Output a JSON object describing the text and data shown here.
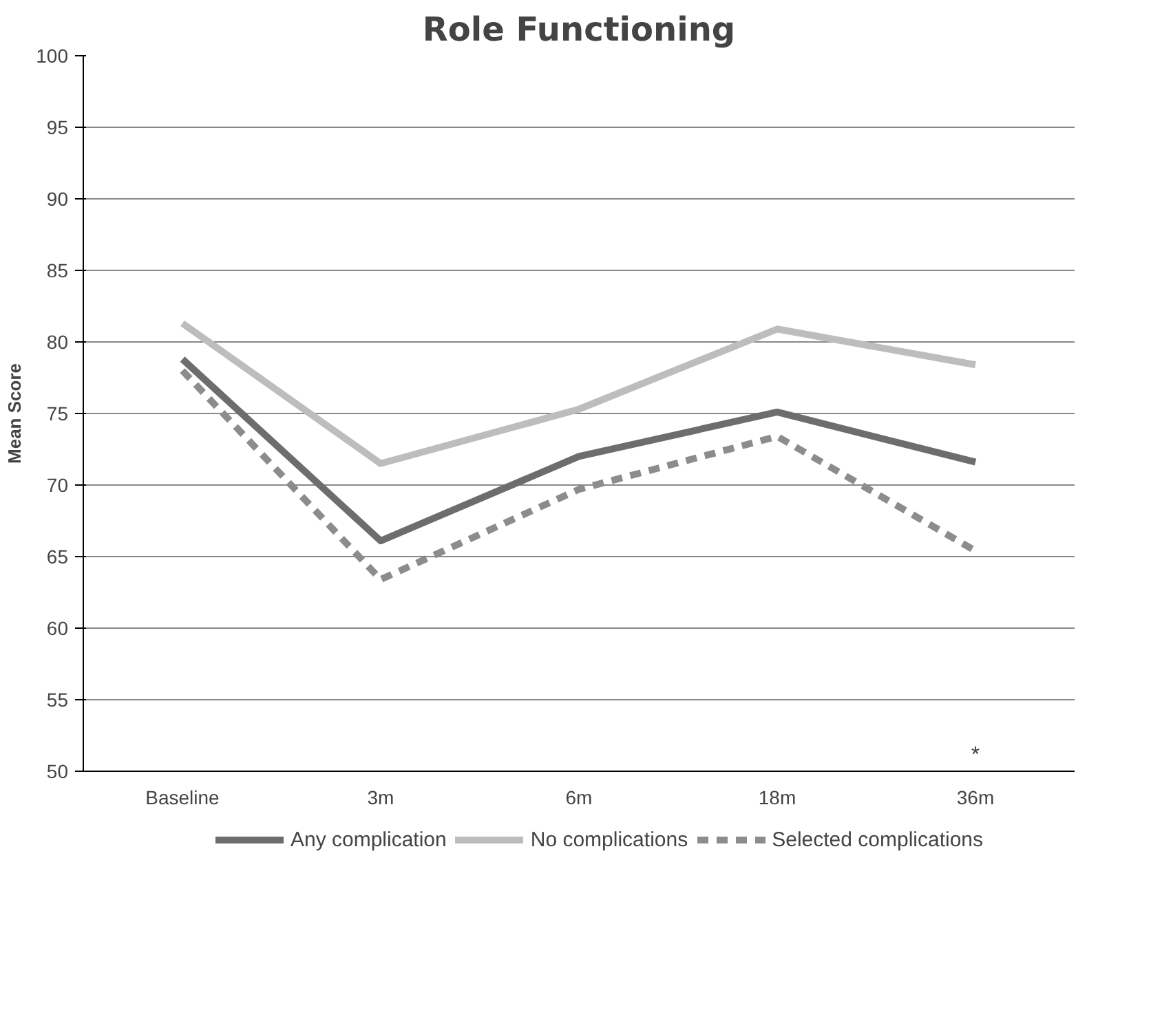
{
  "chart_data": {
    "type": "line",
    "title": "Role Functioning",
    "ylabel": "Mean Score",
    "categories": [
      "Baseline",
      "3m",
      "6m",
      "18m",
      "36m"
    ],
    "series": [
      {
        "name": "Any complication",
        "color": "#6d6d6d",
        "values": [
          78.8,
          66.1,
          72.0,
          75.1,
          71.6
        ],
        "line_style": "solid"
      },
      {
        "name": "No complications",
        "color": "#bdbdbd",
        "values": [
          81.3,
          71.5,
          75.3,
          80.9,
          78.4
        ],
        "line_style": "solid"
      },
      {
        "name": "Selected complications",
        "color": "#8c8c8c",
        "values": [
          78.0,
          63.4,
          69.7,
          73.4,
          65.4
        ],
        "line_style": "dashed"
      }
    ],
    "ylim": [
      50,
      100
    ],
    "yticks": [
      50,
      55,
      60,
      65,
      70,
      75,
      80,
      85,
      90,
      95,
      100
    ],
    "annotations": [
      "*"
    ],
    "grid": "y",
    "legend": "bottom",
    "marker": "none"
  }
}
